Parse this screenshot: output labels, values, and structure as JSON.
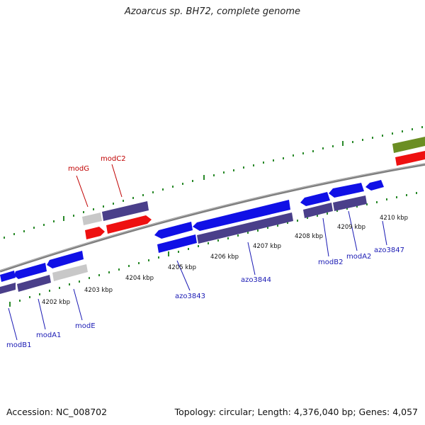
{
  "header": {
    "title": "Azoarcus sp. BH72, complete genome"
  },
  "footer": {
    "accession": "Accession: NC_008702",
    "summary": "Topology: circular; Length: 4,376,040 bp; Genes: 4,057"
  },
  "colors": {
    "forward_gene": "#1010e6",
    "reverse_gene": "#4a3f8a",
    "rna_gene": "#ee1010",
    "pseudo_gene": "#c8c8c8",
    "other_gene": "#6b8e23",
    "tick": "#2a8a2a",
    "backbone": "#8a8a8a"
  },
  "coordinate_labels": [
    "4202 kbp",
    "4203 kbp",
    "4204 kbp",
    "4205 kbp",
    "4206 kbp",
    "4207 kbp",
    "4208 kbp",
    "4209 kbp",
    "4210 kbp"
  ],
  "gene_labels_lower": [
    "modB1",
    "modA1",
    "modE",
    "azo3843",
    "azo3844",
    "modB2",
    "modA2",
    "azo3847"
  ],
  "gene_labels_upper": [
    "modG",
    "modC2"
  ]
}
